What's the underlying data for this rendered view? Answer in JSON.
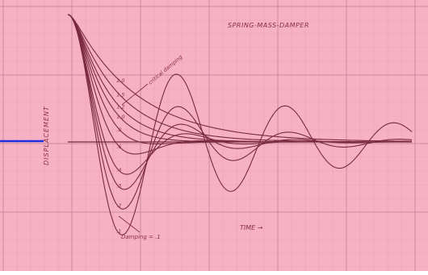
{
  "chart_data": {
    "type": "line",
    "title": "SPRING-MASS-DAMPER",
    "xlabel": "TIME →",
    "ylabel": "DISPLACEMENT",
    "xlim": [
      0,
      10
    ],
    "ylim": [
      -1.05,
      1.05
    ],
    "grid": true,
    "annotations": {
      "critical": "critical damping",
      "damping_low": "Damping = .1"
    },
    "series": [
      {
        "label": "2.0",
        "zeta": 2.0
      },
      {
        "label": "1.5",
        "zeta": 1.5
      },
      {
        "label": "1.2",
        "zeta": 1.2
      },
      {
        "label": "1.0",
        "zeta": 1.0
      },
      {
        "label": ".8",
        "zeta": 0.8
      },
      {
        "label": ".6",
        "zeta": 0.6
      },
      {
        "label": ".4",
        "zeta": 0.4
      },
      {
        "label": ".3",
        "zeta": 0.3
      },
      {
        "label": ".2",
        "zeta": 0.2
      },
      {
        "label": ".1",
        "zeta": 0.1
      }
    ],
    "colors": {
      "paper": "#f6b2c2",
      "grid_major": "#c98a9e",
      "grid_minor": "#ee9fb3",
      "curve": "#7a2a40",
      "ink": "#8a2f4a",
      "marker": "#1c2fe0"
    }
  }
}
